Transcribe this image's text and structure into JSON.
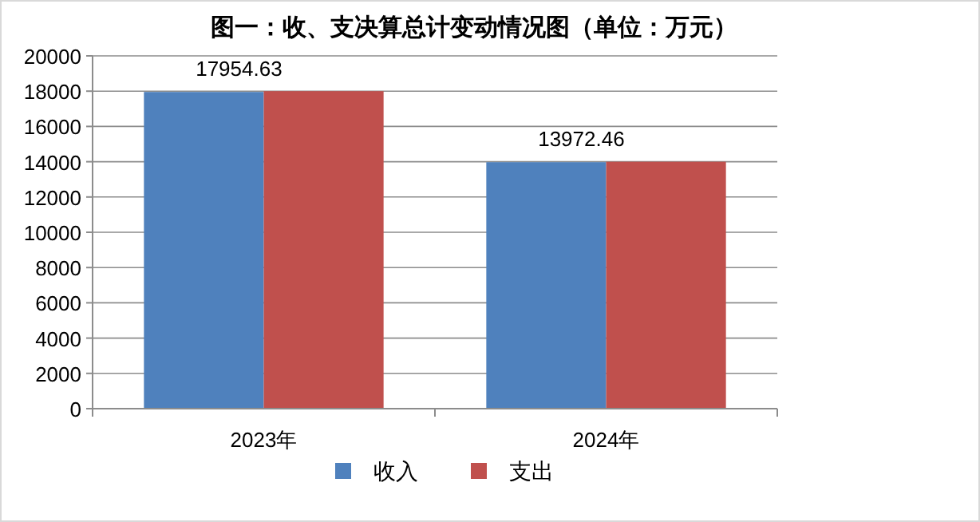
{
  "chart_data": {
    "type": "bar",
    "title": "图一：收、支决算总计变动情况图（单位：万元）",
    "categories": [
      "2023年",
      "2024年"
    ],
    "series": [
      {
        "name": "收入",
        "color": "#4f81bd",
        "values": [
          17954.63,
          13972.46
        ],
        "value_labels": [
          "17954.63",
          "13972.46"
        ]
      },
      {
        "name": "支出",
        "color": "#c0504d",
        "values": [
          18000,
          14000
        ]
      }
    ],
    "ylim": [
      0,
      20000
    ],
    "yticks": [
      0,
      2000,
      4000,
      6000,
      8000,
      10000,
      12000,
      14000,
      16000,
      18000,
      20000
    ],
    "grid": "y",
    "legend": "bottom"
  }
}
